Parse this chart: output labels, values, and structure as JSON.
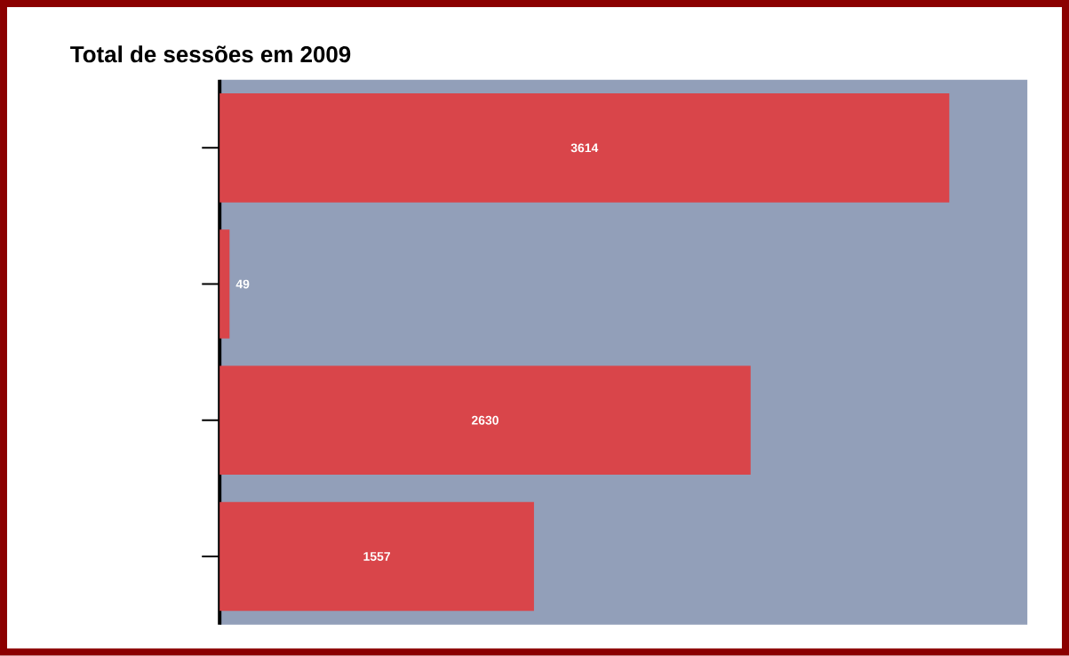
{
  "chart_data": {
    "type": "bar",
    "orientation": "horizontal",
    "title": "Total de sessões em 2009",
    "categories": [
      null,
      null,
      null,
      null
    ],
    "values": [
      3614,
      49,
      2630,
      1557
    ],
    "color": "#d9454a",
    "data_labels": true
  }
}
